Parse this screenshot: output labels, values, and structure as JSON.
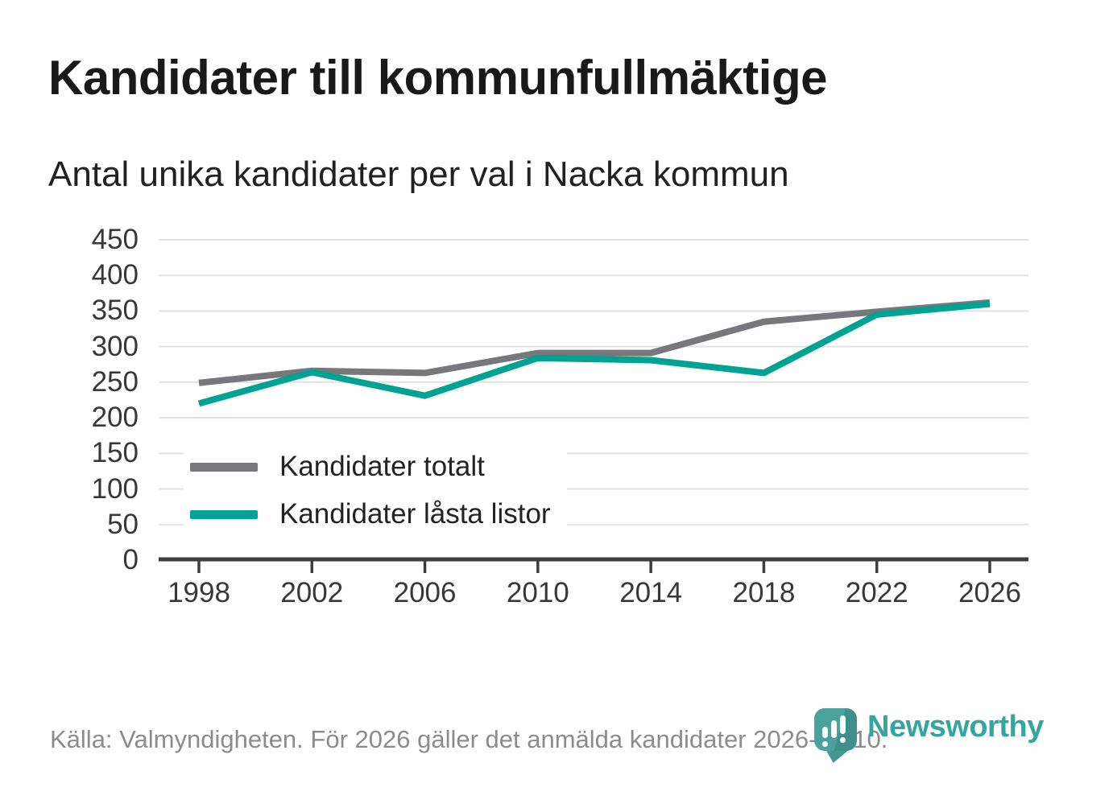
{
  "header": {
    "title": "Kandidater till kommunfullmäktige",
    "subtitle": "Antal unika kandidater per val i Nacka kommun"
  },
  "chart_data": {
    "type": "line",
    "title": "Kandidater till kommunfullmäktige",
    "subtitle": "Antal unika kandidater per val i Nacka kommun",
    "categories": [
      "1998",
      "2002",
      "2006",
      "2010",
      "2014",
      "2018",
      "2022",
      "2026"
    ],
    "series": [
      {
        "name": "Kandidater totalt",
        "color": "#77777c",
        "values": [
          249,
          266,
          263,
          291,
          291,
          335,
          349,
          362
        ]
      },
      {
        "name": "Kandidater låsta listor",
        "color": "#00a294",
        "values": [
          220,
          264,
          231,
          284,
          281,
          263,
          345,
          360
        ]
      }
    ],
    "ylim": [
      0,
      450
    ],
    "yticks": [
      0,
      50,
      100,
      150,
      200,
      250,
      300,
      350,
      400,
      450
    ],
    "grid": "horizontal-only",
    "legend_position": "inside-lower-left",
    "xlabel": "",
    "ylabel": ""
  },
  "footer": {
    "source": "Källa: Valmyndigheten. För 2026 gäller det anmälda kandidater 2026-04-10.",
    "brand": "Newsworthy"
  },
  "colors": {
    "series_total": "#77777c",
    "series_locked": "#00a294",
    "gridline": "#e2e2e2",
    "axis": "#3d3d3d",
    "tick_label": "#383838",
    "logo_teal": "#35a5a0",
    "logo_pin": "#4ba19b"
  }
}
